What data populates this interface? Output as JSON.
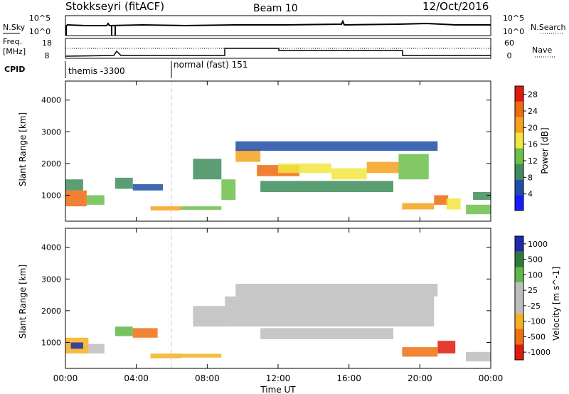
{
  "header": {
    "station": "Stokkseyri (fitACF)",
    "beam": "Beam 10",
    "date": "12/Oct/2016"
  },
  "labels": {
    "nsky": "N.Sky",
    "nsearch": "N.Search",
    "freq_line1": "Freq.",
    "freq_line2": "[MHz]",
    "nave": "Nave",
    "cpid": "CPID",
    "noise_tick_top": "10^5",
    "noise_tick_bottom": "10^0",
    "freq_tick_top": "18",
    "freq_tick_bottom": "8",
    "nave_tick_top": "60",
    "nave_tick_bottom": "0",
    "xaxis": "Time UT"
  },
  "cpid": [
    {
      "name": "themis -3300",
      "start_hour": 0
    },
    {
      "name": "normal (fast) 151",
      "start_hour": 6
    }
  ],
  "colors": {
    "power_scale": [
      "#1a1aff",
      "#1e4fa8",
      "#3f8d5c",
      "#6cc04a",
      "#f2e640",
      "#f6a21c",
      "#ef6a10",
      "#e01a0a"
    ],
    "velocity_scale": [
      "#1e2aa8",
      "#2e7a3a",
      "#5fb848",
      "#bdbdbd",
      "#bdbdbd",
      "#f4b020",
      "#ef7010",
      "#e01a0a"
    ],
    "frame": "#000000"
  },
  "chart_data": [
    {
      "type": "heatmap",
      "panel": "power",
      "ylabel": "Slant Range [km]",
      "xlabel": "Time UT",
      "xlim": [
        0,
        24
      ],
      "ylim": [
        180,
        4600
      ],
      "xticks": [
        "00:00",
        "04:00",
        "08:00",
        "12:00",
        "16:00",
        "20:00",
        "00:00"
      ],
      "yticks": [
        1000,
        2000,
        3000,
        4000
      ],
      "colorbar": {
        "label": "Power [dB]",
        "ticks": [
          4,
          8,
          12,
          16,
          20,
          24,
          28
        ],
        "range": [
          0,
          30
        ]
      },
      "regions": [
        {
          "t": [
            0.0,
            1.2
          ],
          "r": [
            650,
            1150
          ],
          "value": 24
        },
        {
          "t": [
            0.0,
            1.0
          ],
          "r": [
            1150,
            1500
          ],
          "value": 10
        },
        {
          "t": [
            1.2,
            2.2
          ],
          "r": [
            700,
            1000
          ],
          "value": 12
        },
        {
          "t": [
            2.8,
            3.8
          ],
          "r": [
            1200,
            1550
          ],
          "value": 8
        },
        {
          "t": [
            3.8,
            5.5
          ],
          "r": [
            1150,
            1350
          ],
          "value": 6
        },
        {
          "t": [
            4.8,
            6.5
          ],
          "r": [
            520,
            650
          ],
          "value": 20
        },
        {
          "t": [
            6.5,
            8.8
          ],
          "r": [
            540,
            650
          ],
          "value": 14
        },
        {
          "t": [
            7.2,
            8.8
          ],
          "r": [
            1500,
            2150
          ],
          "value": 10
        },
        {
          "t": [
            8.8,
            9.6
          ],
          "r": [
            850,
            1500
          ],
          "value": 12
        },
        {
          "t": [
            9.6,
            11.0
          ],
          "r": [
            2050,
            2450
          ],
          "value": 22
        },
        {
          "t": [
            10.8,
            13.2
          ],
          "r": [
            1600,
            1950
          ],
          "value": 26
        },
        {
          "t": [
            12.0,
            15.0
          ],
          "r": [
            1700,
            2000
          ],
          "value": 16
        },
        {
          "t": [
            15.0,
            17.0
          ],
          "r": [
            1500,
            1850
          ],
          "value": 18
        },
        {
          "t": [
            17.0,
            18.8
          ],
          "r": [
            1700,
            2050
          ],
          "value": 22
        },
        {
          "t": [
            18.8,
            20.5
          ],
          "r": [
            1500,
            2300
          ],
          "value": 12
        },
        {
          "t": [
            11.0,
            18.5
          ],
          "r": [
            1100,
            1450
          ],
          "value": 10
        },
        {
          "t": [
            19.0,
            20.8
          ],
          "r": [
            550,
            750
          ],
          "value": 20
        },
        {
          "t": [
            20.8,
            21.6
          ],
          "r": [
            700,
            1000
          ],
          "value": 26
        },
        {
          "t": [
            21.5,
            22.3
          ],
          "r": [
            550,
            900
          ],
          "value": 18
        },
        {
          "t": [
            22.6,
            24.0
          ],
          "r": [
            400,
            700
          ],
          "value": 14
        },
        {
          "t": [
            23.0,
            24.0
          ],
          "r": [
            850,
            1100
          ],
          "value": 8
        },
        {
          "t": [
            9.6,
            21.0
          ],
          "r": [
            2400,
            2700
          ],
          "value": 6
        }
      ]
    },
    {
      "type": "heatmap",
      "panel": "velocity",
      "ylabel": "Slant Range [km]",
      "xlabel": "Time UT",
      "xlim": [
        0,
        24
      ],
      "ylim": [
        180,
        4600
      ],
      "xticks": [
        "00:00",
        "04:00",
        "08:00",
        "12:00",
        "16:00",
        "20:00",
        "00:00"
      ],
      "yticks": [
        1000,
        2000,
        3000,
        4000
      ],
      "colorbar": {
        "label": "Velocity [m s^-1]",
        "ticks": [
          "1000",
          "500",
          "100",
          "25",
          "-25",
          "-100",
          "-500",
          "-1000"
        ]
      },
      "regions": [
        {
          "t": [
            0.0,
            1.3
          ],
          "r": [
            650,
            1150
          ],
          "value": -200
        },
        {
          "t": [
            0.3,
            1.0
          ],
          "r": [
            800,
            1000
          ],
          "value": 800
        },
        {
          "t": [
            1.3,
            2.2
          ],
          "r": [
            650,
            950
          ],
          "value": 0
        },
        {
          "t": [
            2.8,
            3.8
          ],
          "r": [
            1200,
            1500
          ],
          "value": 150
        },
        {
          "t": [
            3.8,
            5.2
          ],
          "r": [
            1150,
            1450
          ],
          "value": -300
        },
        {
          "t": [
            4.8,
            6.5
          ],
          "r": [
            500,
            650
          ],
          "value": -100
        },
        {
          "t": [
            6.5,
            8.8
          ],
          "r": [
            520,
            640
          ],
          "value": -100
        },
        {
          "t": [
            7.2,
            9.0
          ],
          "r": [
            1500,
            2150
          ],
          "value": 0
        },
        {
          "t": [
            9.0,
            20.8
          ],
          "r": [
            1500,
            2450
          ],
          "value": 0
        },
        {
          "t": [
            11.0,
            18.5
          ],
          "r": [
            1100,
            1450
          ],
          "value": 0
        },
        {
          "t": [
            19.0,
            21.0
          ],
          "r": [
            550,
            850
          ],
          "value": -300
        },
        {
          "t": [
            21.0,
            22.0
          ],
          "r": [
            650,
            1050
          ],
          "value": -800
        },
        {
          "t": [
            22.6,
            24.0
          ],
          "r": [
            400,
            700
          ],
          "value": 0
        },
        {
          "t": [
            9.6,
            21.0
          ],
          "r": [
            2450,
            2850
          ],
          "value": 0
        }
      ]
    }
  ]
}
